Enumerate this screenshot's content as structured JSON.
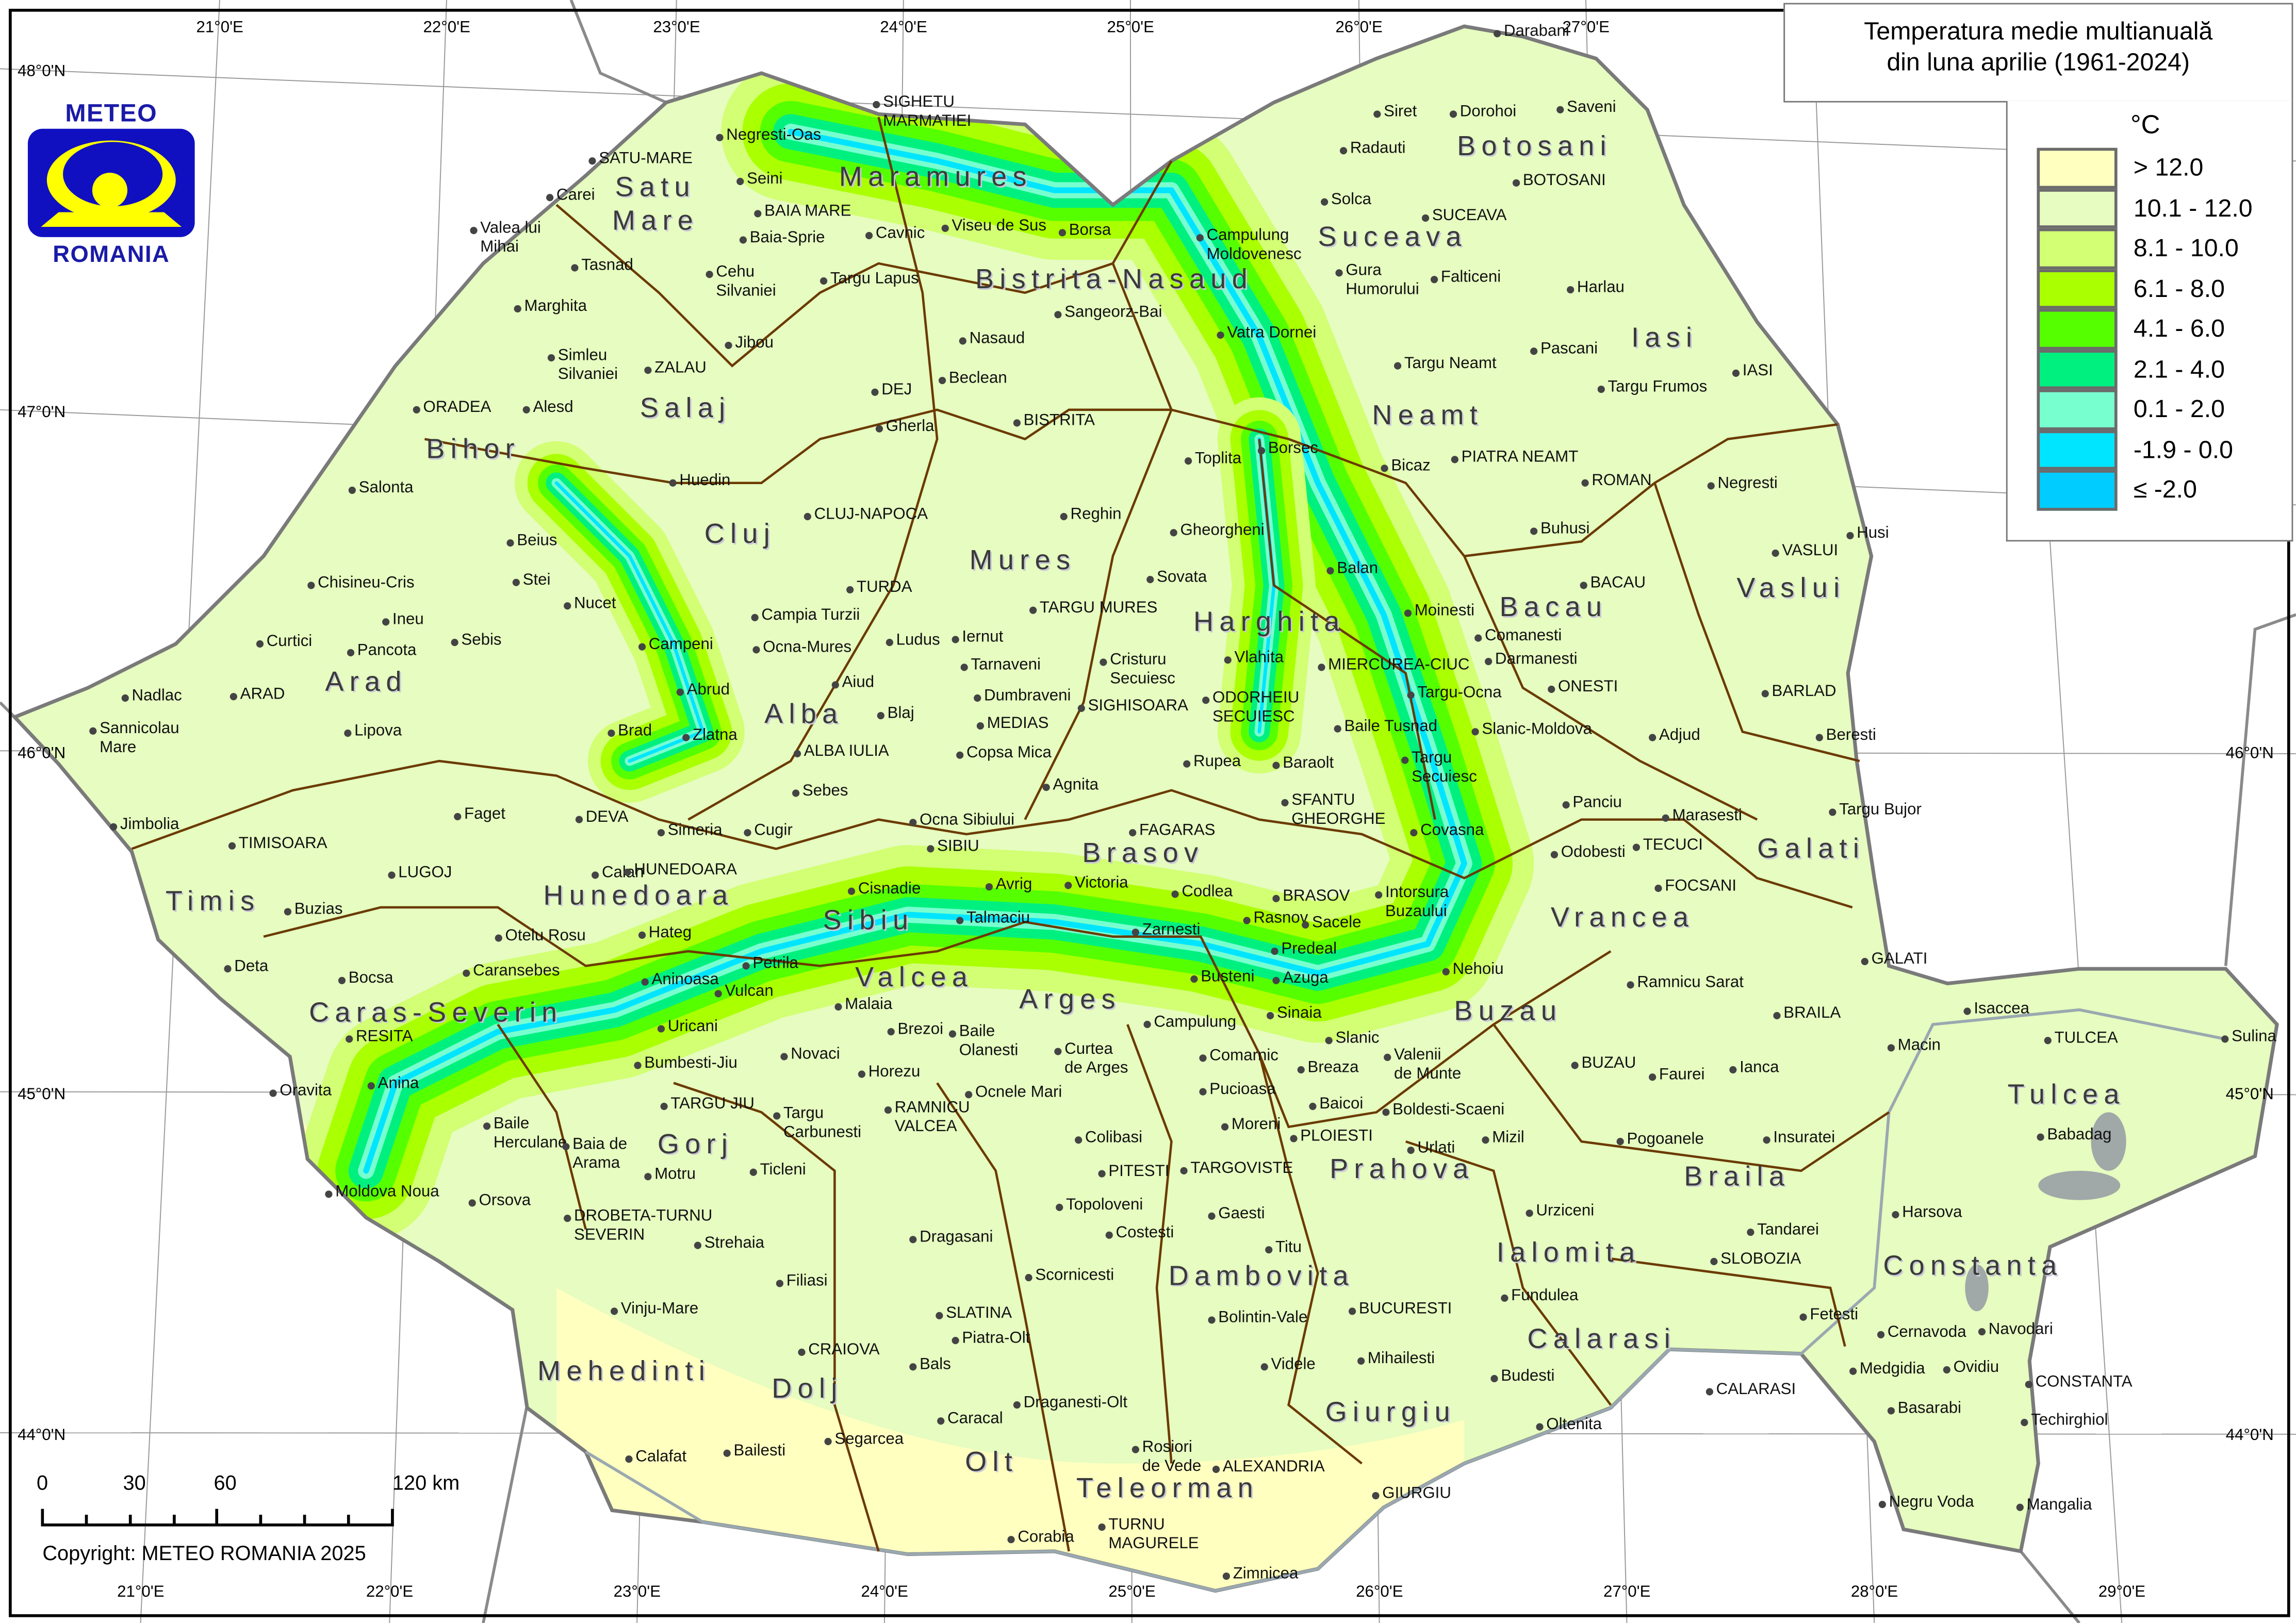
{
  "title": {
    "line1": "Temperatura medie multianuală",
    "line2": "din luna aprilie (1961-2024)"
  },
  "legend": {
    "unit": "°C",
    "items": [
      {
        "label": "> 12.0",
        "color": "#ffffc0"
      },
      {
        "label": "10.1 - 12.0",
        "color": "#e6fcc0"
      },
      {
        "label": "8.1 - 10.0",
        "color": "#d2ff73"
      },
      {
        "label": "6.1 - 8.0",
        "color": "#aaff00"
      },
      {
        "label": "4.1 - 6.0",
        "color": "#55ff00"
      },
      {
        "label": "2.1 - 4.0",
        "color": "#00f080"
      },
      {
        "label": "0.1 - 2.0",
        "color": "#78ffd0"
      },
      {
        "label": "-1.9 - 0.0",
        "color": "#00e5ff"
      },
      {
        "label": "≤ -2.0",
        "color": "#00ccff"
      }
    ]
  },
  "logo": {
    "top": "METEO",
    "bottom": "ROMANIA",
    "blue": "#1010c0",
    "yellow": "#ffff00"
  },
  "scale_bar": {
    "labels": [
      "0",
      "30",
      "60",
      "120 km"
    ]
  },
  "copyright": "Copyright: METEO ROMANIA 2025",
  "graticule": {
    "top_lon": [
      "21°0'E",
      "22°0'E",
      "23°0'E",
      "24°0'E",
      "25°0'E",
      "26°0'E",
      "27°0'E"
    ],
    "bottom_lon": [
      "21°0'E",
      "22°0'E",
      "23°0'E",
      "24°0'E",
      "25°0'E",
      "26°0'E",
      "27°0'E",
      "28°0'E",
      "29°0'E"
    ],
    "left_lat": [
      "48°0'N",
      "47°0'N",
      "46°0'N",
      "45°0'N",
      "44°0'N"
    ],
    "right_lat": [
      "46°0'N",
      "45°0'N",
      "44°0'N"
    ]
  },
  "counties": [
    "Satu",
    "Mare",
    "Maramures",
    "Bistrita-Nasaud",
    "Suceava",
    "Botosani",
    "Iasi",
    "Neamt",
    "Salaj",
    "Bihor",
    "Cluj",
    "Mures",
    "Harghita",
    "Bacau",
    "Vaslui",
    "Arad",
    "Alba",
    "Brasov",
    "Galati",
    "Timis",
    "Hunedoara",
    "Sibiu",
    "Vrancea",
    "Valcea",
    "Arges",
    "Caras-Severin",
    "Buzau",
    "Tulcea",
    "Gorj",
    "Prahova",
    "Braila",
    "Ialomita",
    "Constanta",
    "Dambovita",
    "Calarasi",
    "Mehedinti",
    "Dolj",
    "Giurgiu",
    "Olt",
    "Teleorman"
  ],
  "cities": [
    "Darabani",
    "Siret",
    "Dorohoi",
    "Saveni",
    "Radauti",
    "BOTOSANI",
    "Solca",
    "SUCEAVA",
    "Campulung\nMoldovenesc",
    "Gura\nHumorului",
    "Falticeni",
    "Harlau",
    "Vatra Dornei",
    "Pascani",
    "Targu Neamt",
    "IASI",
    "Targu Frumos",
    "Bicaz",
    "PIATRA NEAMT",
    "ROMAN",
    "Negresti",
    "Borsec",
    "Toplita",
    "Buhusi",
    "Husi",
    "VASLUI",
    "Gheorgheni",
    "Balan",
    "BACAU",
    "Moinesti",
    "Comanesti",
    "Darmanesti",
    "MIERCUREA-CIUC",
    "Vlahita",
    "Targu-Ocna",
    "ONESTI",
    "BARLAD",
    "Slanic-Moldova",
    "Baile Tusnad",
    "Adjud",
    "Beresti",
    "ODORHEIU\nSECUIESC",
    "Targu\nSecuiesc",
    "Baraolt",
    "Rupea",
    "SFANTU\nGHEORGHE",
    "Panciu",
    "Marasesti",
    "Targu Bujor",
    "Covasna",
    "Odobesti",
    "TECUCI",
    "FOCSANI",
    "Intorsura\nBuzaului",
    "BRASOV",
    "Codlea",
    "Rasnov",
    "Sacele",
    "Zarnesti",
    "Predeal",
    "Nehoiu",
    "Busteni",
    "Azuga",
    "Sinaia",
    "Campulung",
    "GALATI",
    "Ramnicu Sarat",
    "BRAILA",
    "Isaccea",
    "Macin",
    "TULCEA",
    "Sulina",
    "Slanic",
    "Valenii\nde Munte",
    "Comarnic",
    "Breaza",
    "Pucioasa",
    "Baicoi",
    "BUZAU",
    "Faurei",
    "Ianca",
    "Boldesti-Scaeni",
    "Moreni",
    "PLOIESTI",
    "Urlati",
    "Mizil",
    "Pogoanele",
    "Insuratei",
    "Babadag",
    "TARGOVISTE",
    "Gaesti",
    "Titu",
    "Urziceni",
    "Tandarei",
    "Harsova",
    "SLOBOZIA",
    "Fundulea",
    "BUCURESTI",
    "Bolintin-Vale",
    "Mihailesti",
    "Videle",
    "Budesti",
    "Fetesti",
    "Cernavoda",
    "Navodari",
    "Medgidia",
    "Ovidiu",
    "CONSTANTA",
    "CALARASI",
    "Oltenita",
    "Basarabi",
    "Techirghiol",
    "GIURGIU",
    "ALEXANDRIA",
    "Rosiori\nde Vede",
    "TURNU\nMAGURELE",
    "Zimnicea",
    "Negru Voda",
    "Mangalia",
    "Corabia",
    "Draganesti-Olt",
    "Caracal",
    "Bals",
    "SLATINA",
    "Piatra-Olt",
    "CRAIOVA",
    "Segarcea",
    "Bailesti",
    "Calafat",
    "Scornicesti",
    "Dragasani",
    "Costesti",
    "Topoloveni",
    "PITESTI",
    "Colibasi",
    "Curtea\nde Arges",
    "Ocnele Mari",
    "RAMNICU\nVALCEA",
    "Horezu",
    "Baile\nOlanesti",
    "Brezoi",
    "Novaci",
    "Targu\nCarbunesti",
    "TARGU JIU",
    "Bumbesti-Jiu",
    "Motru",
    "Ticleni",
    "Filiasi",
    "Strehaia",
    "DROBETA-TURNU\nSEVERIN",
    "Vinju-Mare",
    "Orsova",
    "Baile\nHerculane",
    "Baia de\nArama",
    "Moldova Noua",
    "Oravita",
    "Anina",
    "RESITA",
    "Bocsa",
    "Caransebes",
    "Otelu Rosu",
    "Deta",
    "Buzias",
    "LUGOJ",
    "TIMISOARA",
    "Jimbolia",
    "Faget",
    "DEVA",
    "Hateg",
    "Calan",
    "HUNEDOARA",
    "Simeria",
    "Cugir",
    "Sebes",
    "ALBA IULIA",
    "Petrila",
    "Aninoasa",
    "Vulcan",
    "Uricani",
    "Malaia",
    "Cisnadie",
    "Talmaciu",
    "Avrig",
    "Victoria",
    "SIBIU",
    "Ocna Sibiului",
    "Agnita",
    "FAGARAS",
    "Copsa Mica",
    "MEDIAS",
    "Dumbraveni",
    "SIGHISOARA",
    "Tarnaveni",
    "Blaj",
    "Aiud",
    "Ocna-Mures",
    "Campia Turzii",
    "TURDA",
    "Ludus",
    "Iernut",
    "TARGU MURES",
    "Reghin",
    "Sovata",
    "Cristuru\nSecuiesc",
    "Zlatna",
    "Brad",
    "Abrud",
    "Campeni",
    "Nucet",
    "Stei",
    "Beius",
    "Huedin",
    "CLUJ-NAPOCA",
    "Gherla",
    "DEJ",
    "Beclean",
    "BISTRITA",
    "Nasaud",
    "Sangeorz-Bai",
    "Targu Lapus",
    "Jibou",
    "ZALAU",
    "Simleu\nSilvaniei",
    "Alesd",
    "ORADEA",
    "Salonta",
    "Marghita",
    "Tasnad",
    "Cehu\nSilvaniei",
    "Valea lui\nMihai",
    "Carei",
    "SATU-MARE",
    "Seini",
    "BAIA MARE",
    "Baia-Sprie",
    "Negresti-Oas",
    "SIGHETU\nMARMATIEI",
    "Cavnic",
    "Viseu de Sus",
    "Borsa",
    "Chisineu-Cris",
    "Ineu",
    "Sebis",
    "Pancota",
    "Curtici",
    "ARAD",
    "Nadlac",
    "Sannicolau\nMare",
    "Lipova"
  ]
}
